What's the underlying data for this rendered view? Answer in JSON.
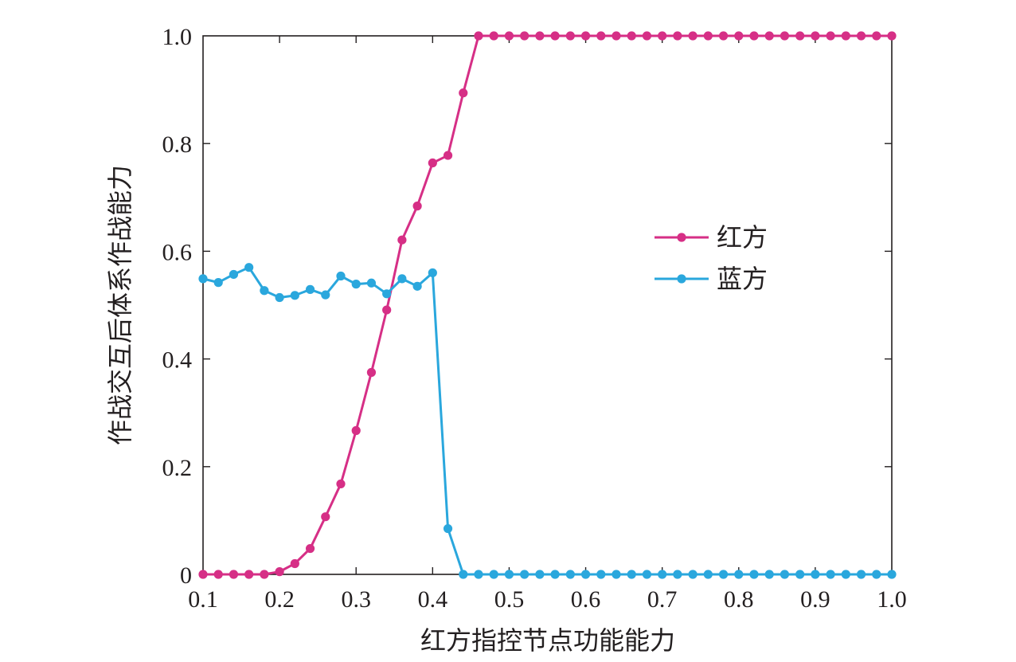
{
  "chart_data": {
    "type": "line",
    "title": "",
    "xlabel": "红方指控节点功能能力",
    "ylabel": "作战交互后体系作战能力",
    "xlim": [
      0.1,
      1.0
    ],
    "ylim": [
      0,
      1.0
    ],
    "x_ticks": [
      "0.1",
      "0.2",
      "0.3",
      "0.4",
      "0.5",
      "0.6",
      "0.7",
      "0.8",
      "0.9",
      "1.0"
    ],
    "y_ticks": [
      "0",
      "0.2",
      "0.4",
      "0.6",
      "0.8",
      "1.0"
    ],
    "grid": false,
    "legend_position": "center-right",
    "x": [
      0.1,
      0.12,
      0.14,
      0.16,
      0.18,
      0.2,
      0.22,
      0.24,
      0.26,
      0.28,
      0.3,
      0.32,
      0.34,
      0.36,
      0.38,
      0.4,
      0.42,
      0.44,
      0.46,
      0.48,
      0.5,
      0.52,
      0.54,
      0.56,
      0.58,
      0.6,
      0.62,
      0.64,
      0.66,
      0.68,
      0.7,
      0.72,
      0.74,
      0.76,
      0.78,
      0.8,
      0.82,
      0.84,
      0.86,
      0.88,
      0.9,
      0.92,
      0.94,
      0.96,
      0.98,
      1.0
    ],
    "series": [
      {
        "name": "红方",
        "color": "#d62f86",
        "values": [
          0,
          0,
          0,
          0,
          0,
          0.005,
          0.02,
          0.048,
          0.107,
          0.168,
          0.267,
          0.375,
          0.491,
          0.621,
          0.684,
          0.764,
          0.778,
          0.894,
          1,
          1,
          1,
          1,
          1,
          1,
          1,
          1,
          1,
          1,
          1,
          1,
          1,
          1,
          1,
          1,
          1,
          1,
          1,
          1,
          1,
          1,
          1,
          1,
          1,
          1,
          1,
          1
        ]
      },
      {
        "name": "蓝方",
        "color": "#2aa7dd",
        "values": [
          0.549,
          0.542,
          0.557,
          0.57,
          0.527,
          0.514,
          0.518,
          0.529,
          0.519,
          0.554,
          0.539,
          0.541,
          0.521,
          0.549,
          0.535,
          0.56,
          0.085,
          0,
          0,
          0,
          0,
          0,
          0,
          0,
          0,
          0,
          0,
          0,
          0,
          0,
          0,
          0,
          0,
          0,
          0,
          0,
          0,
          0,
          0,
          0,
          0,
          0,
          0,
          0,
          0,
          0
        ]
      }
    ]
  }
}
